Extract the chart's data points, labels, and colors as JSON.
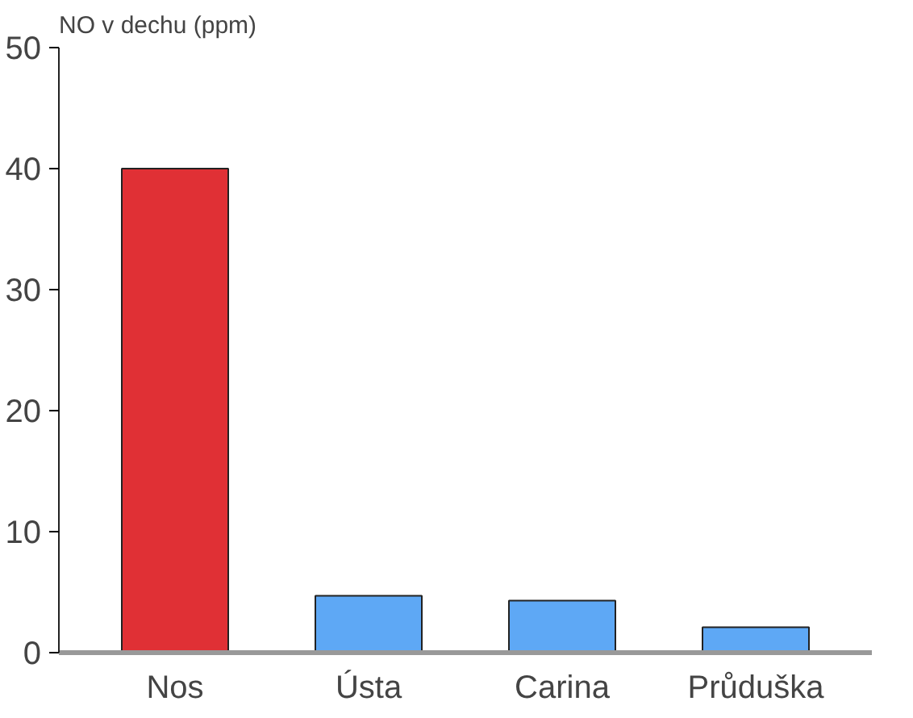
{
  "chart_data": {
    "type": "bar",
    "ylabel": "NO v dechu (ppm)",
    "categories": [
      "Nos",
      "Ústa",
      "Carina",
      "Průduška"
    ],
    "values": [
      40,
      4.7,
      4.3,
      2.1
    ],
    "colors": [
      "#e03035",
      "#5ea8f5",
      "#5ea8f5",
      "#5ea8f5"
    ],
    "ylim": [
      0,
      50
    ],
    "yticks": [
      0,
      10,
      20,
      30,
      40,
      50
    ],
    "grid": false
  }
}
